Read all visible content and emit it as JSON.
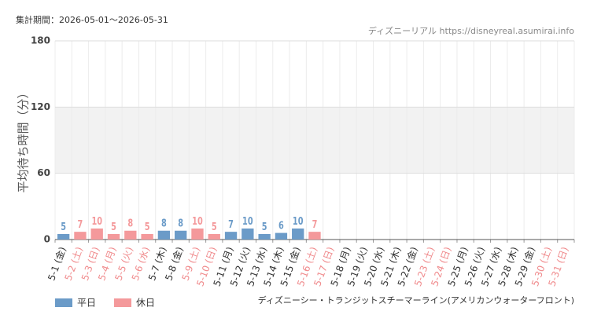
{
  "chart_data": {
    "type": "bar",
    "period": "集計期間：2026-05-01～2026-05-31",
    "source": "ディズニーリアル https://disneyreal.asumirai.info",
    "y_label": "平均待ち時間（分）",
    "caption": "ディズニーシー・トランジットスチーマーライン(アメリカンウォーターフロント)",
    "categories": [
      "5-1 (金)",
      "5-2 (土)",
      "5-3 (日)",
      "5-4 (月)",
      "5-5 (火)",
      "5-6 (水)",
      "5-7 (木)",
      "5-8 (金)",
      "5-9 (土)",
      "5-10 (日)",
      "5-11 (月)",
      "5-12 (火)",
      "5-13 (水)",
      "5-14 (木)",
      "5-15 (金)",
      "5-16 (土)",
      "5-17 (日)",
      "5-18 (月)",
      "5-19 (火)",
      "5-20 (水)",
      "5-21 (木)",
      "5-22 (金)",
      "5-23 (土)",
      "5-24 (日)",
      "5-25 (月)",
      "5-26 (火)",
      "5-27 (水)",
      "5-28 (木)",
      "5-29 (金)",
      "5-30 (土)",
      "5-31 (日)"
    ],
    "label_colors": [
      "#333333",
      "#f08a8c",
      "#f08a8c",
      "#f08a8c",
      "#f08a8c",
      "#f08a8c",
      "#333333",
      "#333333",
      "#f08a8c",
      "#f08a8c",
      "#333333",
      "#333333",
      "#333333",
      "#333333",
      "#333333",
      "#f08a8c",
      "#f08a8c",
      "#333333",
      "#333333",
      "#333333",
      "#333333",
      "#333333",
      "#f08a8c",
      "#f08a8c",
      "#333333",
      "#333333",
      "#333333",
      "#333333",
      "#333333",
      "#f08a8c",
      "#f08a8c"
    ],
    "series": [
      {
        "name": "平日",
        "color": "#6b9bc8",
        "values": [
          5,
          null,
          null,
          null,
          null,
          null,
          8,
          8,
          null,
          null,
          7,
          10,
          5,
          6,
          10,
          null,
          null,
          null,
          null,
          null,
          null,
          null,
          null,
          null,
          null,
          null,
          null,
          null,
          null,
          null,
          null
        ]
      },
      {
        "name": "休日",
        "color": "#f4999b",
        "values": [
          null,
          7,
          10,
          5,
          8,
          5,
          null,
          null,
          10,
          5,
          null,
          null,
          null,
          null,
          null,
          7,
          null,
          null,
          null,
          null,
          null,
          null,
          null,
          null,
          null,
          null,
          null,
          null,
          null,
          null,
          null
        ]
      }
    ],
    "ylim": [
      0,
      180
    ],
    "yticks": [
      0,
      60,
      120,
      180
    ],
    "grid": true
  }
}
